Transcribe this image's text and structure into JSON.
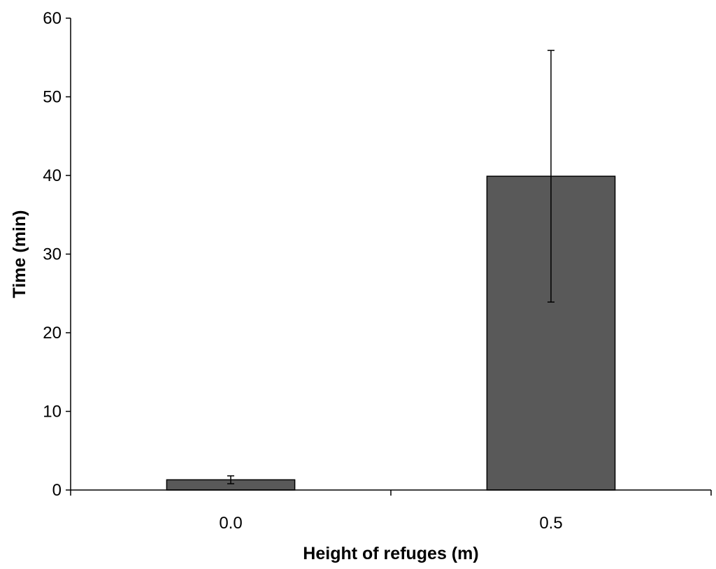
{
  "chart_data": {
    "type": "bar",
    "categories": [
      "0.0",
      "0.5"
    ],
    "values": [
      1.3,
      39.9
    ],
    "error_bars": {
      "upper": [
        1.8,
        55.9
      ],
      "lower": [
        0.8,
        23.9
      ]
    },
    "xlabel": "Height of refuges (m)",
    "ylabel": "Time (min)",
    "ylim": [
      0,
      60
    ],
    "y_ticks": [
      0,
      10,
      20,
      30,
      40,
      50,
      60
    ],
    "y_tick_labels": [
      "0",
      "10",
      "20",
      "30",
      "40",
      "50",
      "60"
    ],
    "grid": false,
    "legend": "none",
    "bar_color": "#595959"
  }
}
